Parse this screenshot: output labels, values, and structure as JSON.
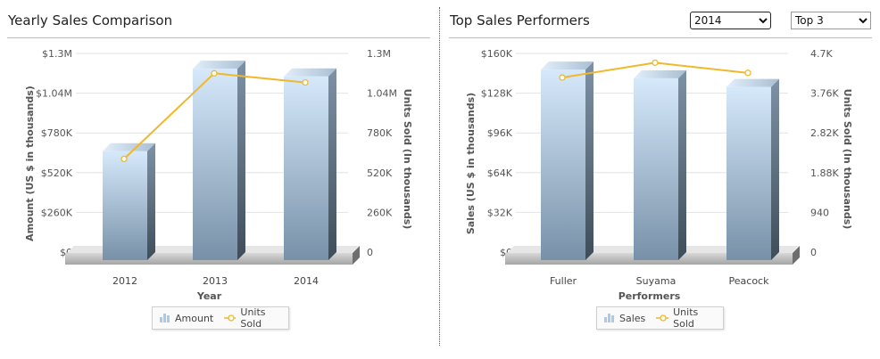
{
  "left": {
    "title": "Yearly Sales Comparison",
    "legend": {
      "amount": "Amount",
      "units": "Units Sold"
    }
  },
  "right": {
    "title": "Top Sales Performers",
    "year_select": {
      "value": "2014",
      "options": [
        "2014"
      ]
    },
    "top_select": {
      "value": "Top 3",
      "options": [
        "Top 3"
      ]
    },
    "legend": {
      "sales": "Sales",
      "units": "Units Sold"
    }
  },
  "colors": {
    "line": "#f0b82a",
    "bar_top": "#d6e9fb",
    "bar_bottom": "#7891a8",
    "grid": "#e2e2e2"
  },
  "chart_data": [
    {
      "type": "bar",
      "title": "Yearly Sales Comparison",
      "categories": [
        "2012",
        "2013",
        "2014"
      ],
      "xlabel": "Year",
      "ylabel": "Amount (US $ in thousands)",
      "y2label": "Units Sold (In thousands)",
      "ylim": [
        0,
        1300000
      ],
      "y2lim": [
        0,
        1300000
      ],
      "yticks": [
        "$0",
        "$260K",
        "$520K",
        "$780K",
        "$1.04M",
        "$1.3M"
      ],
      "y2ticks": [
        "0",
        "260K",
        "520K",
        "780K",
        "1.04M",
        "1.3M"
      ],
      "series": [
        {
          "name": "Amount",
          "type": "bar",
          "values": [
            660000,
            1200000,
            1150000
          ]
        },
        {
          "name": "Units Sold",
          "type": "line",
          "axis": "right",
          "values": [
            610000,
            1170000,
            1110000
          ]
        }
      ],
      "legend_position": "bottom"
    },
    {
      "type": "bar",
      "title": "Top Sales Performers",
      "categories": [
        "Fuller",
        "Suyama",
        "Peacock"
      ],
      "xlabel": "Performers",
      "ylabel": "Sales (US $ in thousands)",
      "y2label": "Units Sold (In thousands)",
      "ylim": [
        0,
        160000
      ],
      "y2lim": [
        0,
        4700
      ],
      "yticks": [
        "$0",
        "$32K",
        "$64K",
        "$96K",
        "$128K",
        "$160K"
      ],
      "y2ticks": [
        "0",
        "940",
        "1.88K",
        "2.82K",
        "3.76K",
        "4.7K"
      ],
      "series": [
        {
          "name": "Sales",
          "type": "bar",
          "values": [
            147000,
            140000,
            133000
          ]
        },
        {
          "name": "Units Sold",
          "type": "line",
          "axis": "right",
          "values": [
            4130,
            4480,
            4240
          ]
        }
      ],
      "legend_position": "bottom"
    }
  ]
}
